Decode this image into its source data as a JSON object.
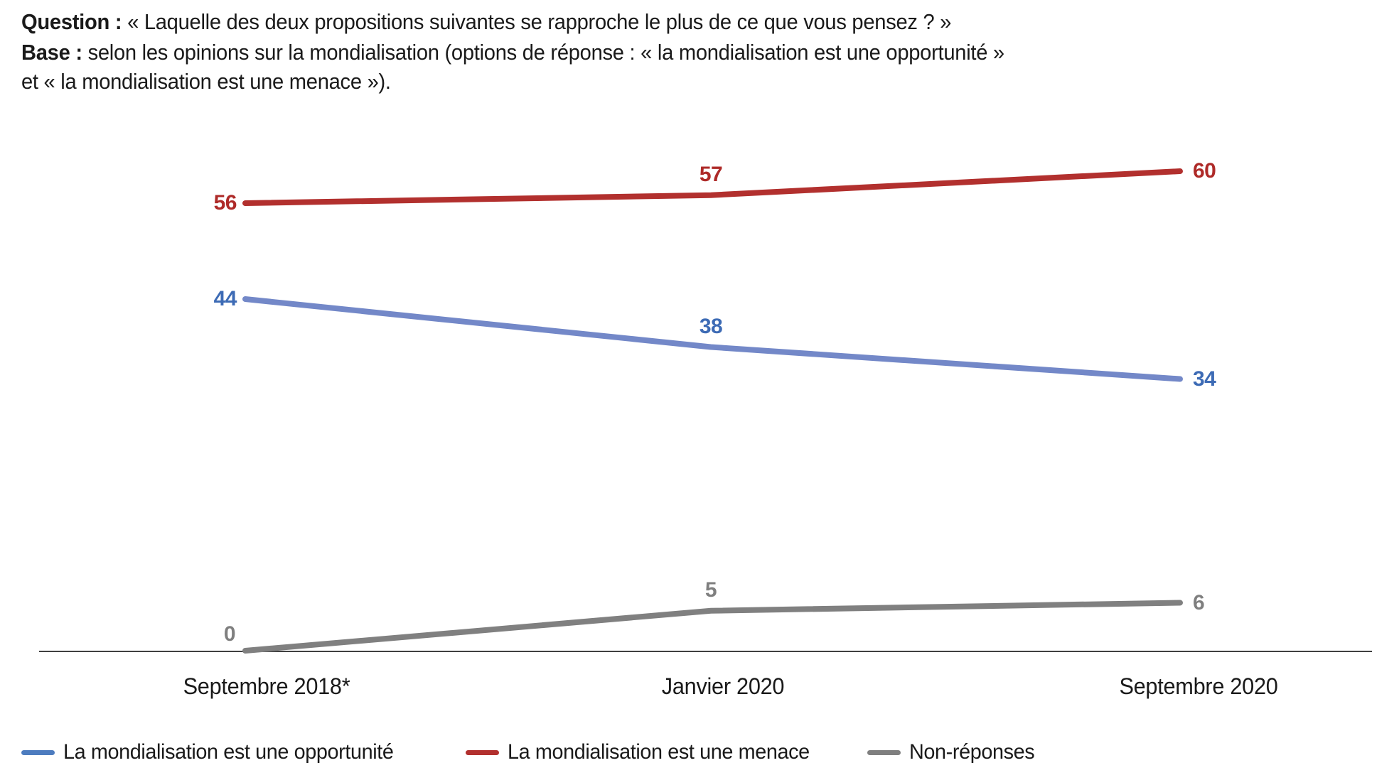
{
  "header": {
    "question_label": "Question :",
    "question_text": " « Laquelle des deux propositions suivantes se rapproche le plus de ce que vous pensez ? »",
    "base_label": "Base :",
    "base_text_line1": " selon les opinions sur la mondialisation (options de réponse : « la mondialisation est une opportunité »",
    "base_text_line2": "et « la mondialisation est une menace »)."
  },
  "chart_data": {
    "type": "line",
    "categories": [
      "Septembre 2018*",
      "Janvier 2020",
      "Septembre 2020"
    ],
    "series": [
      {
        "name": "La mondialisation est une opportunité",
        "values": [
          44,
          38,
          34
        ],
        "line_color": "#7388c8",
        "label_color": "#3d6bb5",
        "swatch_color": "#4d7cbf"
      },
      {
        "name": "La mondialisation est une menace",
        "values": [
          56,
          57,
          60
        ],
        "line_color": "#b2302e",
        "label_color": "#ae2a28",
        "swatch_color": "#b2302e"
      },
      {
        "name": "Non-réponses",
        "values": [
          0,
          5,
          6
        ],
        "line_color": "#808080",
        "label_color": "#7f7f7f",
        "swatch_color": "#7f7f7f"
      }
    ],
    "ylim": [
      0,
      65
    ],
    "grid": false,
    "legend_position": "bottom",
    "data_labels": true,
    "axis_color": "#404040"
  }
}
